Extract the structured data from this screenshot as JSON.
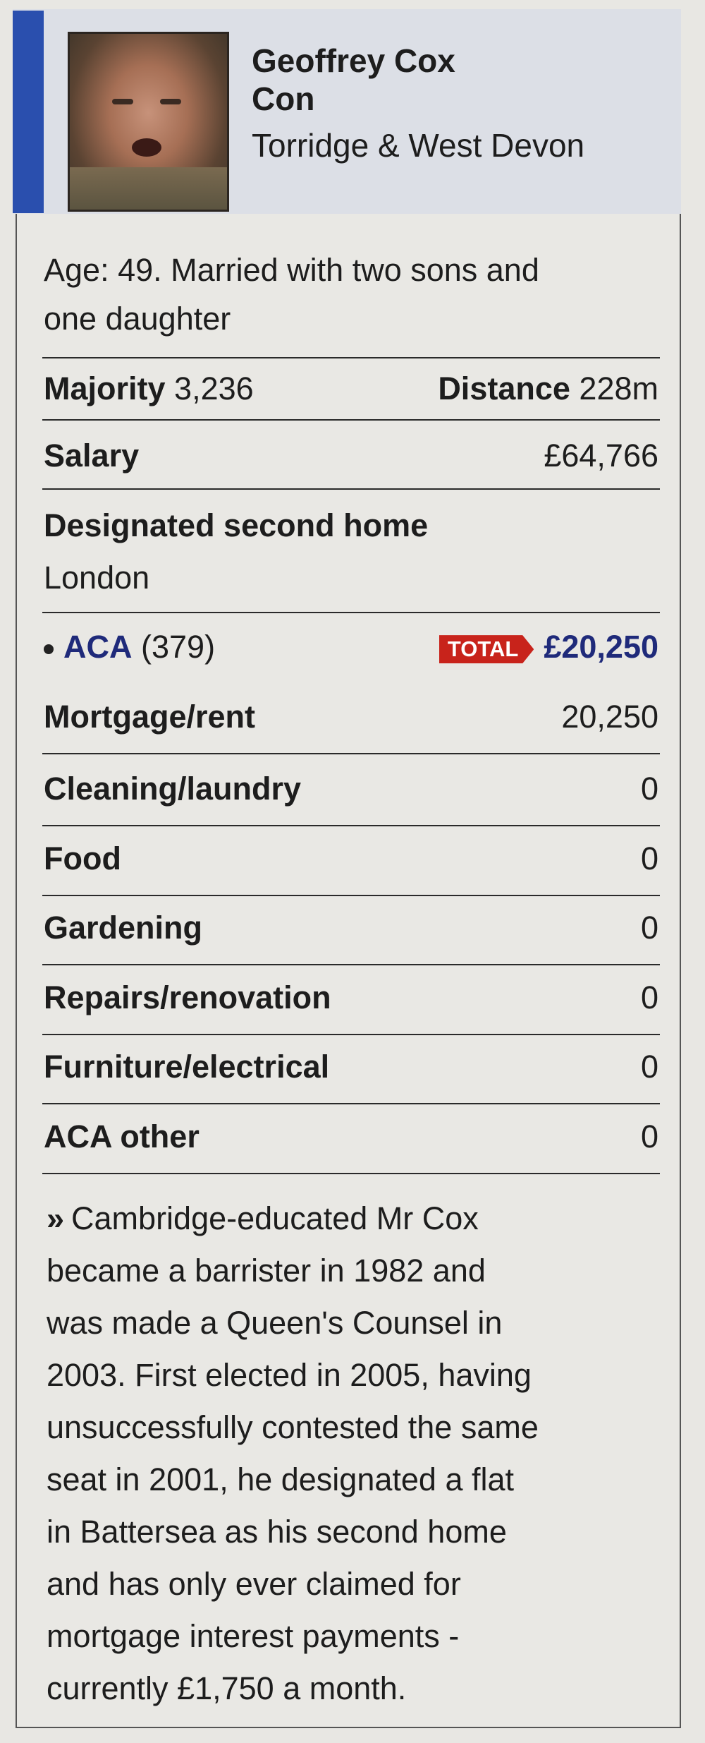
{
  "profile": {
    "name": "Geoffrey Cox",
    "party": "Con",
    "constituency": "Torridge & West Devon",
    "party_color": "#2a4fae",
    "bio": "Age: 49. Married with two sons and",
    "bio_line2": "one daughter"
  },
  "stats": {
    "majority_label": "Majority",
    "majority_value": "3,236",
    "distance_label": "Distance",
    "distance_value": "228m",
    "salary_label": "Salary",
    "salary_value": "£64,766",
    "second_home_label": "Designated second home",
    "second_home_value": "London"
  },
  "aca": {
    "label": "ACA",
    "rank": "(379)",
    "total_tag": "TOTAL",
    "total_value": "£20,250",
    "tag_color": "#c8231b",
    "items": [
      {
        "label": "Mortgage/rent",
        "value": "20,250"
      },
      {
        "label": "Cleaning/laundry",
        "value": "0"
      },
      {
        "label": "Food",
        "value": "0"
      },
      {
        "label": "Gardening",
        "value": "0"
      },
      {
        "label": "Repairs/renovation",
        "value": "0"
      },
      {
        "label": "Furniture/electrical",
        "value": "0"
      },
      {
        "label": "ACA other",
        "value": "0"
      }
    ]
  },
  "summary": {
    "marker": "»",
    "lines": [
      "Cambridge-educated Mr Cox",
      "became a barrister in 1982 and",
      "was made a Queen's Counsel in",
      "2003. First elected in 2005, having",
      "unsuccessfully contested the same",
      "seat in 2001, he designated a flat",
      "in Battersea as his second home",
      "and has only ever claimed for",
      "mortgage interest payments -",
      "currently £1,750 a month."
    ]
  }
}
